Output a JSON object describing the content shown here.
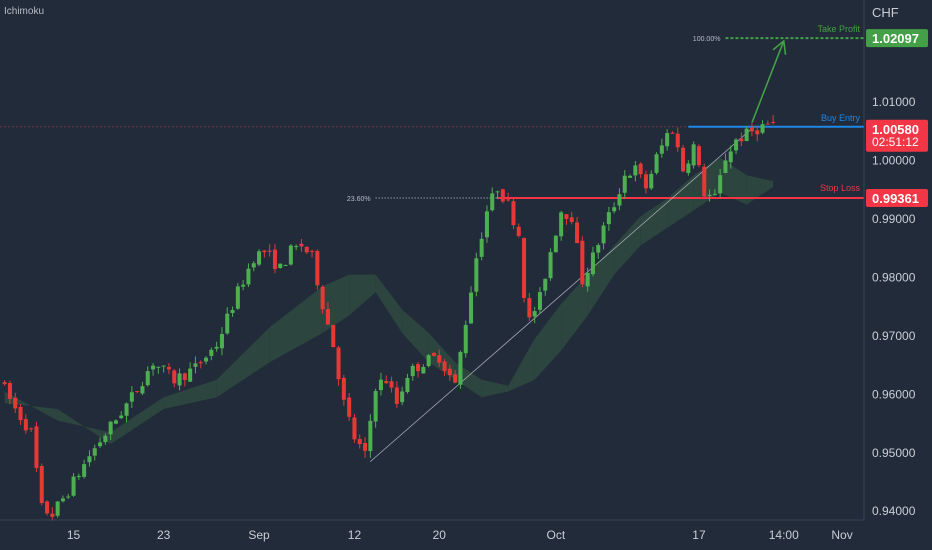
{
  "indicator_label": "Ichimoku",
  "currency_label": "CHF",
  "colors": {
    "background": "#222b3a",
    "bull": "#4caf50",
    "bear": "#e53935",
    "cloud_bull": "#2e4a3f",
    "cloud_bear": "#4a3340",
    "take_profit": "#43a047",
    "buy_entry": "#1e88e5",
    "stop_loss": "#f23645",
    "axis_text": "#c9ced6"
  },
  "chart_data": {
    "type": "candlestick",
    "y_axis": {
      "min": 0.9385,
      "max": 1.0275,
      "ticks": [
        "0.94000",
        "0.95000",
        "0.96000",
        "0.97000",
        "0.98000",
        "0.99000",
        "1.00000",
        "1.01000"
      ],
      "tick_values": [
        0.94,
        0.95,
        0.96,
        0.97,
        0.98,
        0.99,
        1.0,
        1.01
      ]
    },
    "x_axis": {
      "labels": [
        "15",
        "23",
        "Sep",
        "12",
        "20",
        "Oct",
        "17",
        "14:00",
        "Nov"
      ],
      "label_bar_index": [
        13,
        30,
        48,
        66,
        82,
        104,
        131,
        147,
        158
      ]
    },
    "bar_count": 162,
    "levels": [
      {
        "name": "Take Profit",
        "value": 1.02097,
        "label": "1.02097",
        "pct": "100.00%"
      },
      {
        "name": "Buy Entry",
        "value": 1.0058,
        "label": "1.00580",
        "countdown": "02:51:12"
      },
      {
        "name": "Stop Loss",
        "value": 0.99361,
        "label": "0.99361",
        "pct": "23.60%"
      }
    ],
    "trendline": {
      "from": [
        69,
        0.9485
      ],
      "to": [
        141,
        1.0055
      ]
    },
    "arrow": {
      "from": [
        141,
        1.0065
      ],
      "to": [
        147,
        1.0205
      ]
    },
    "anchors": [
      [
        0,
        0.9625
      ],
      [
        3,
        0.9575
      ],
      [
        6,
        0.9535
      ],
      [
        8,
        0.9405
      ],
      [
        10,
        0.9395
      ],
      [
        13,
        0.9435
      ],
      [
        17,
        0.9495
      ],
      [
        21,
        0.9545
      ],
      [
        25,
        0.9595
      ],
      [
        29,
        0.9655
      ],
      [
        33,
        0.9625
      ],
      [
        37,
        0.9645
      ],
      [
        41,
        0.9685
      ],
      [
        45,
        0.9775
      ],
      [
        48,
        0.9835
      ],
      [
        50,
        0.9845
      ],
      [
        53,
        0.9815
      ],
      [
        55,
        0.9845
      ],
      [
        57,
        0.9855
      ],
      [
        59,
        0.9835
      ],
      [
        61,
        0.9755
      ],
      [
        63,
        0.9685
      ],
      [
        65,
        0.9585
      ],
      [
        67,
        0.9525
      ],
      [
        69,
        0.9495
      ],
      [
        71,
        0.9615
      ],
      [
        73,
        0.9625
      ],
      [
        75,
        0.9585
      ],
      [
        77,
        0.9635
      ],
      [
        80,
        0.9655
      ],
      [
        83,
        0.9665
      ],
      [
        86,
        0.9615
      ],
      [
        88,
        0.9725
      ],
      [
        90,
        0.9835
      ],
      [
        92,
        0.9915
      ],
      [
        94,
        0.9955
      ],
      [
        96,
        0.9925
      ],
      [
        98,
        0.9875
      ],
      [
        99,
        0.9775
      ],
      [
        100,
        0.9725
      ],
      [
        102,
        0.9765
      ],
      [
        104,
        0.9845
      ],
      [
        106,
        0.9915
      ],
      [
        108,
        0.9905
      ],
      [
        110,
        0.9795
      ],
      [
        112,
        0.9835
      ],
      [
        114,
        0.9885
      ],
      [
        116,
        0.9925
      ],
      [
        118,
        0.9975
      ],
      [
        120,
        0.9985
      ],
      [
        122,
        0.9955
      ],
      [
        124,
        1.0005
      ],
      [
        126,
        1.0045
      ],
      [
        127,
        1.0055
      ],
      [
        129,
        0.9985
      ],
      [
        131,
        1.0025
      ],
      [
        133,
        0.9945
      ],
      [
        135,
        0.9935
      ],
      [
        137,
        1.0005
      ],
      [
        139,
        1.0035
      ],
      [
        141,
        1.0045
      ],
      [
        143,
        1.0055
      ],
      [
        145,
        1.0062
      ]
    ],
    "cloud": [
      [
        0,
        0.9605,
        0.9585
      ],
      [
        10,
        0.9555,
        0.9575
      ],
      [
        20,
        0.9535,
        0.9515
      ],
      [
        30,
        0.9595,
        0.9575
      ],
      [
        40,
        0.9625,
        0.9595
      ],
      [
        50,
        0.9715,
        0.9655
      ],
      [
        60,
        0.9785,
        0.9705
      ],
      [
        65,
        0.9805,
        0.9735
      ],
      [
        70,
        0.9805,
        0.9775
      ],
      [
        75,
        0.9745,
        0.9705
      ],
      [
        80,
        0.9705,
        0.9655
      ],
      [
        85,
        0.9655,
        0.9625
      ],
      [
        90,
        0.9625,
        0.9595
      ],
      [
        95,
        0.9615,
        0.9605
      ],
      [
        100,
        0.9695,
        0.9625
      ],
      [
        105,
        0.9755,
        0.9675
      ],
      [
        110,
        0.9805,
        0.9735
      ],
      [
        115,
        0.9855,
        0.9805
      ],
      [
        120,
        0.9905,
        0.9855
      ],
      [
        125,
        0.9935,
        0.9885
      ],
      [
        130,
        0.9975,
        0.9915
      ],
      [
        135,
        1.0005,
        0.9945
      ],
      [
        140,
        0.9975,
        0.9925
      ],
      [
        145,
        0.9965,
        0.9955
      ]
    ]
  }
}
